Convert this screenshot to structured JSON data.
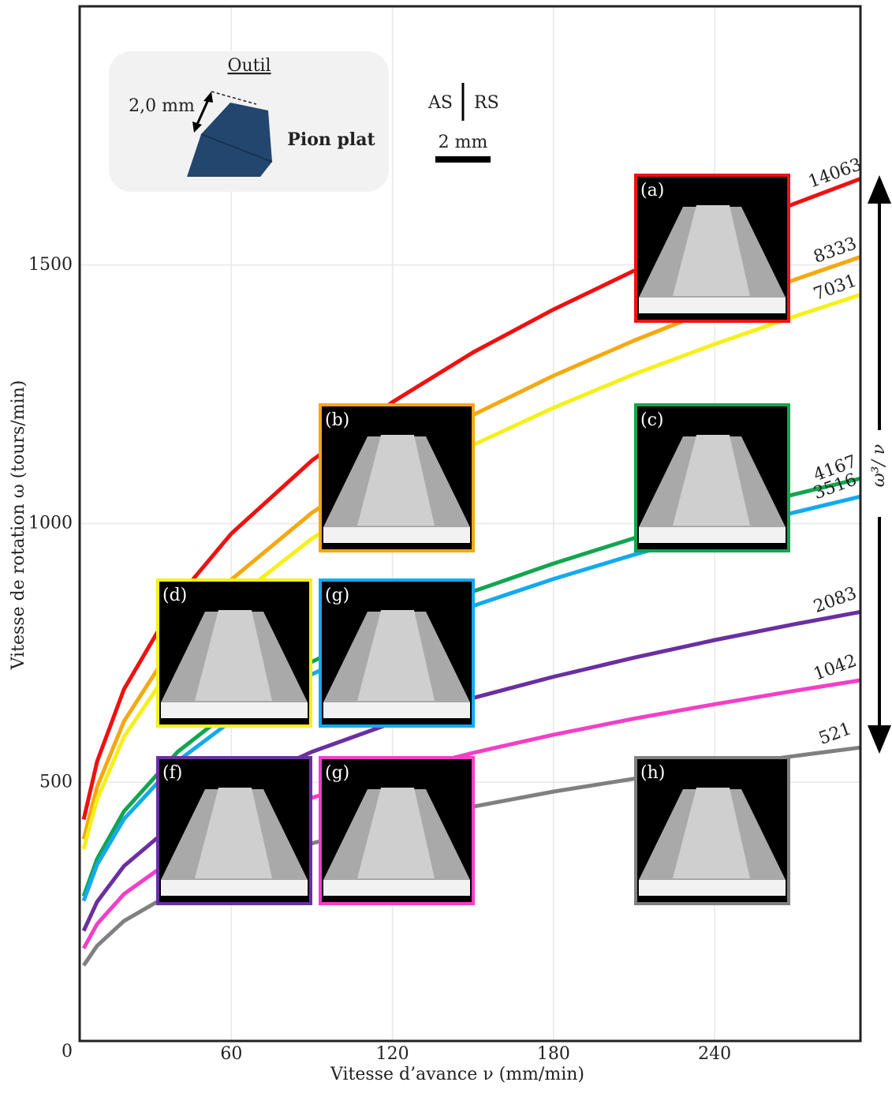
{
  "chart_data": {
    "type": "line",
    "xlabel": "Vitesse d’avance ν (mm/min)",
    "ylabel": "Vitesse de rotation ω (tours/min)",
    "x": [
      5,
      10,
      20,
      40,
      60,
      90,
      120,
      150,
      180,
      210,
      240,
      270,
      294
    ],
    "xlim": [
      3.5,
      294
    ],
    "xticks": [
      60,
      120,
      180,
      240
    ],
    "ylim": [
      0,
      2000
    ],
    "yticks": [
      0,
      500,
      1000,
      1500
    ],
    "grid": true,
    "series": [
      {
        "name": "14063",
        "color": "#ee1111",
        "values": [
          428,
          540,
          680,
          857,
          981,
          1122,
          1235,
          1331,
          1414,
          1489,
          1557,
          1619,
          1666
        ]
      },
      {
        "name": "8333",
        "color": "#f5a810",
        "values": [
          390,
          491,
          618,
          779,
          892,
          1021,
          1124,
          1210,
          1286,
          1354,
          1416,
          1472,
          1515
        ]
      },
      {
        "name": "7031",
        "color": "#f5f01a",
        "values": [
          371,
          467,
          588,
          741,
          849,
          971,
          1069,
          1152,
          1224,
          1289,
          1347,
          1401,
          1442
        ]
      },
      {
        "name": "4167",
        "color": "#12a550",
        "values": [
          280,
          352,
          444,
          559,
          640,
          733,
          806,
          869,
          923,
          972,
          1016,
          1057,
          1087
        ]
      },
      {
        "name": "3516",
        "color": "#12aaee",
        "values": [
          271,
          341,
          429,
          541,
          619,
          709,
          780,
          841,
          893,
          940,
          983,
          1022,
          1052
        ]
      },
      {
        "name": "2083",
        "color": "#6a2fa0",
        "values": [
          213,
          269,
          338,
          426,
          488,
          559,
          615,
          663,
          704,
          741,
          775,
          806,
          829
        ]
      },
      {
        "name": "1042",
        "color": "#f23fc8",
        "values": [
          179,
          226,
          284,
          358,
          410,
          470,
          517,
          557,
          592,
          623,
          651,
          677,
          697
        ]
      },
      {
        "name": "521",
        "color": "#808080",
        "values": [
          146,
          184,
          232,
          292,
          334,
          382,
          421,
          453,
          482,
          507,
          530,
          551,
          567
        ]
      }
    ],
    "insets": [
      {
        "label": "(a)",
        "color": "#ee1111"
      },
      {
        "label": "(b)",
        "color": "#f5a810"
      },
      {
        "label": "(c)",
        "color": "#12a550"
      },
      {
        "label": "(d)",
        "color": "#f5f01a"
      },
      {
        "label": "(g)",
        "color": "#12aaee"
      },
      {
        "label": "(f)",
        "color": "#6a2fa0"
      },
      {
        "label": "(g)",
        "color": "#f23fc8"
      },
      {
        "label": "(h)",
        "color": "#808080"
      }
    ],
    "tool": {
      "title": "Outil",
      "dimension": "2,0 mm",
      "name": "Pion plat"
    },
    "sides": {
      "left": "AS",
      "right": "RS"
    },
    "scale_bar": "2 mm",
    "arrow_label": "ω³/ ν"
  }
}
